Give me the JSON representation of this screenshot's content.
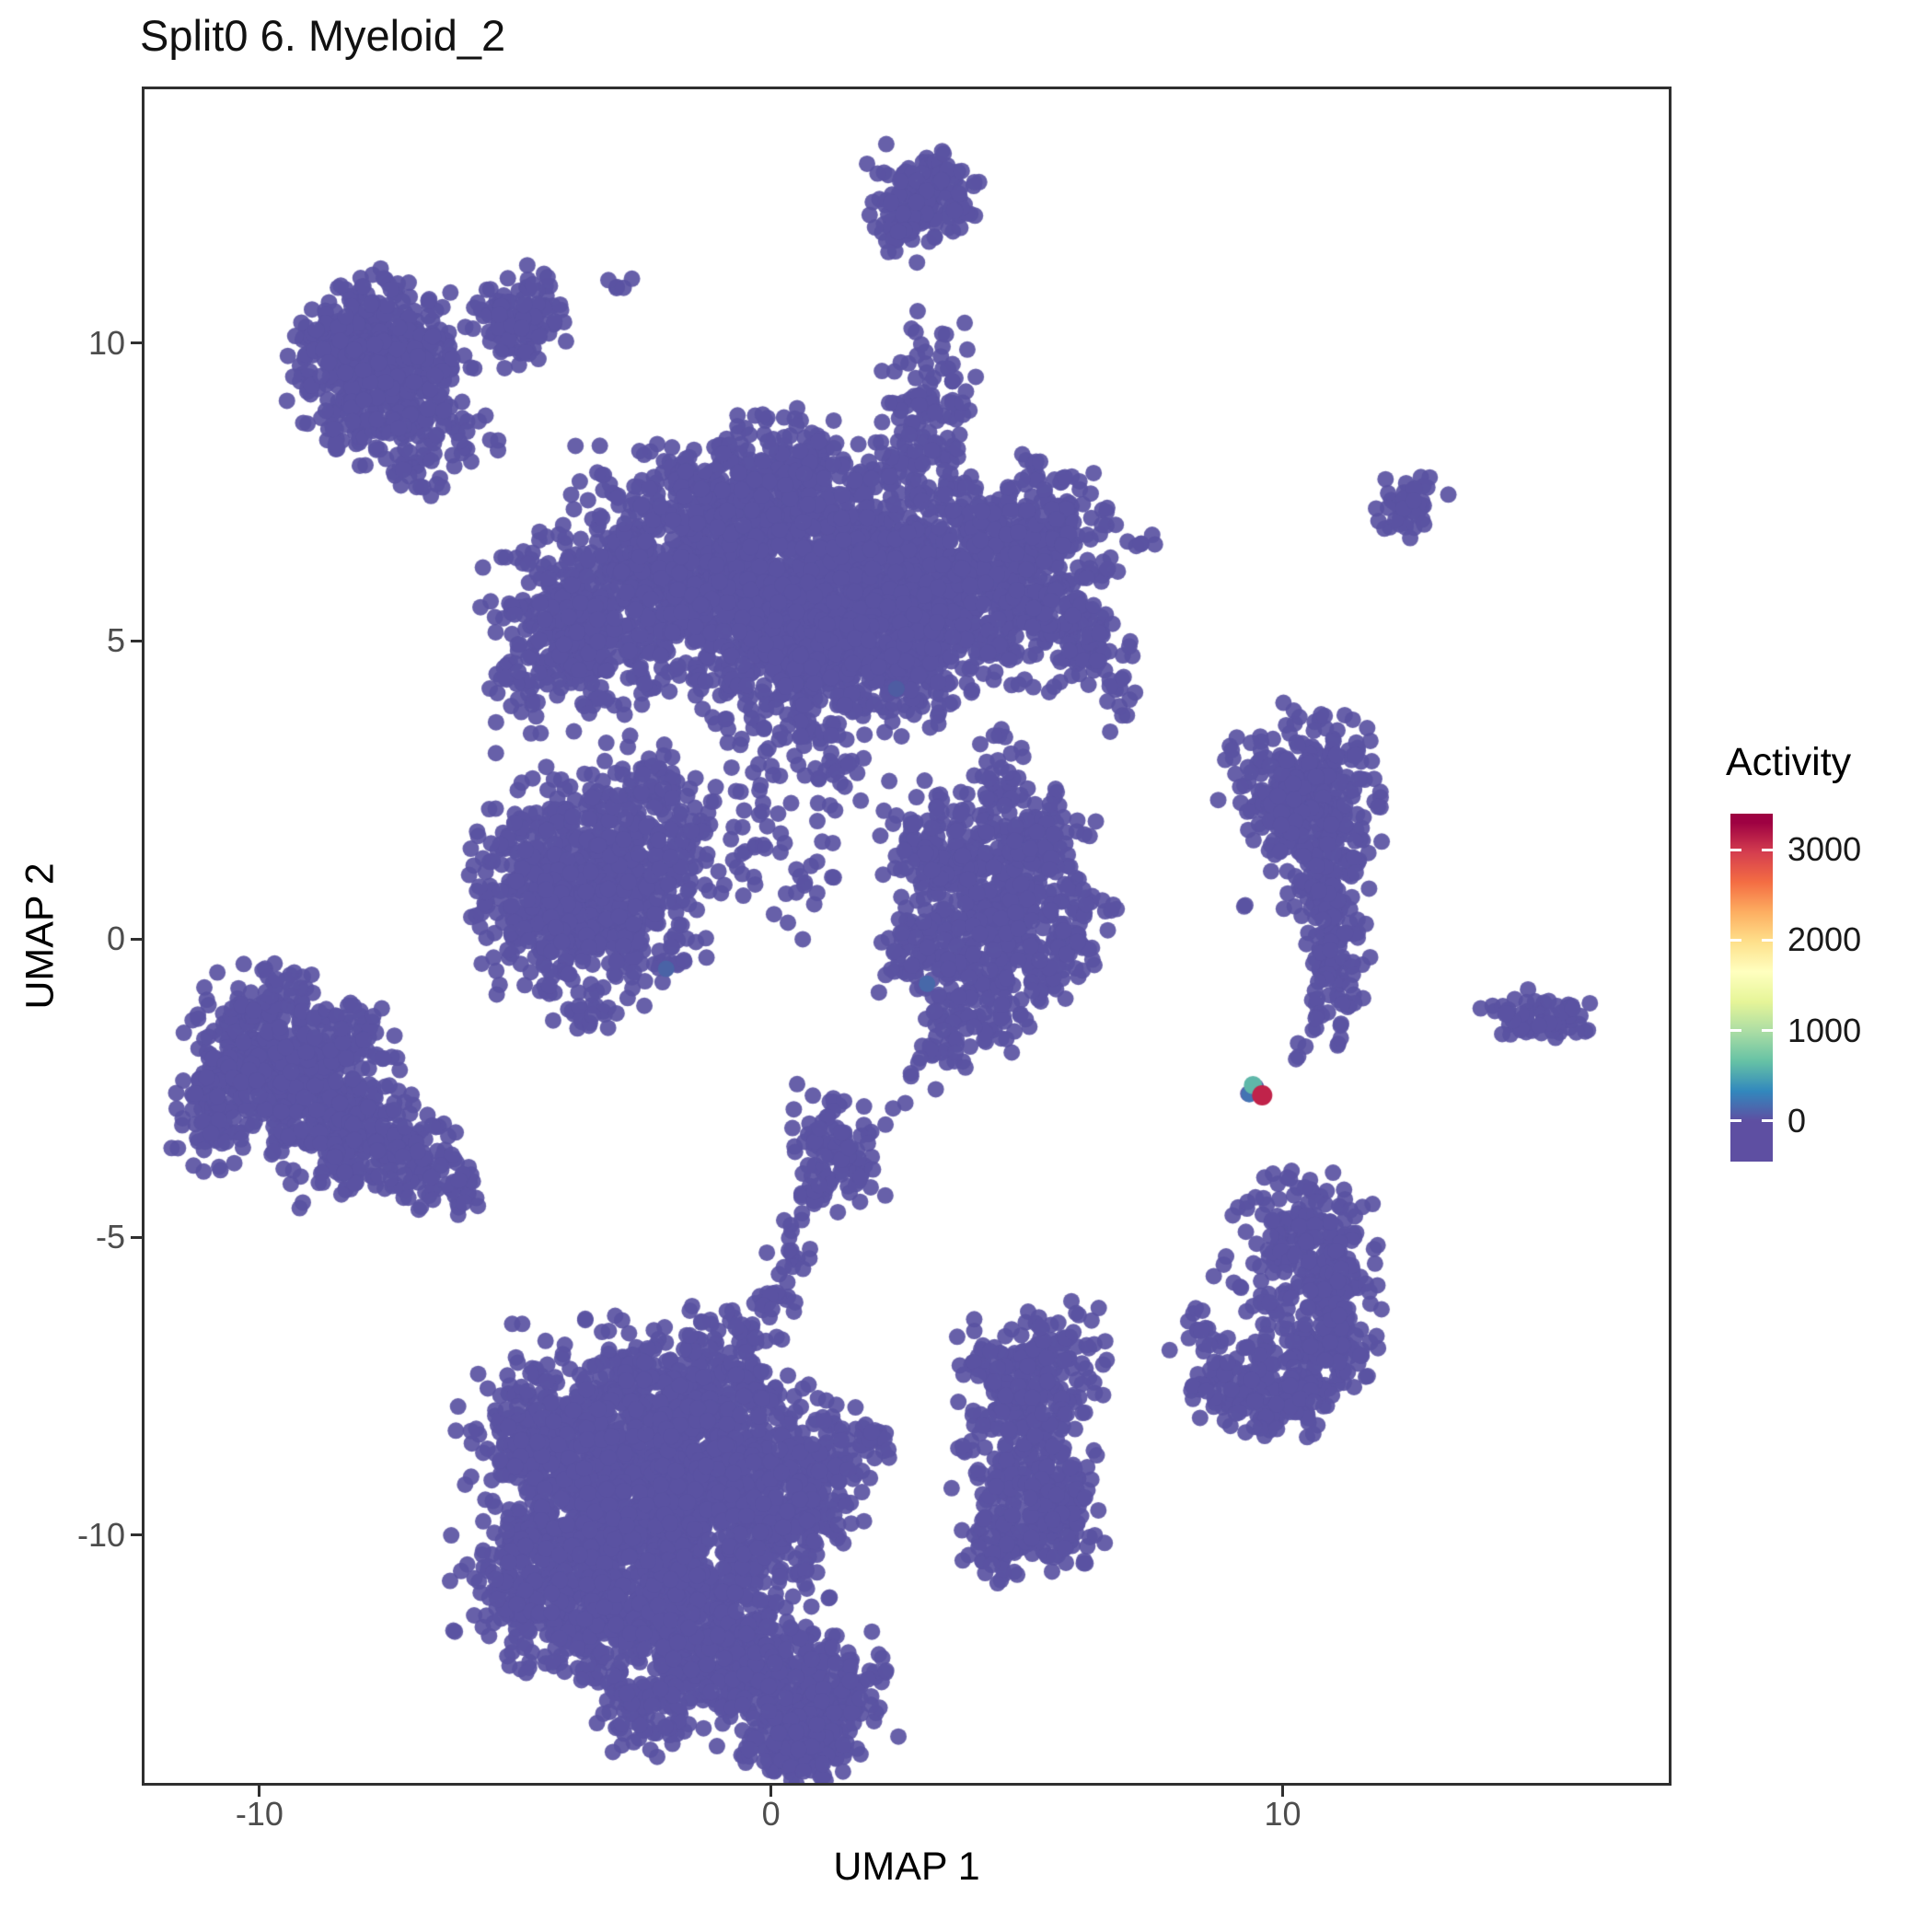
{
  "title": "Split0 6. Myeloid_2",
  "axes": {
    "x": {
      "label": "UMAP 1",
      "ticks": [
        -10,
        0,
        10
      ],
      "range": [
        -12.3,
        17.6
      ]
    },
    "y": {
      "label": "UMAP 2",
      "ticks": [
        -10,
        -5,
        0,
        5,
        10
      ],
      "range": [
        -14.2,
        14.3
      ]
    }
  },
  "legend": {
    "title": "Activity",
    "ticks": [
      0,
      1000,
      2000,
      3000
    ],
    "bar_value_range": [
      -450,
      3400
    ],
    "color_value_range": [
      0,
      3300
    ],
    "colors_low_to_high": [
      "#5E4FA2",
      "#3288BD",
      "#66C2A5",
      "#ABDDA4",
      "#E6F598",
      "#FFFFBF",
      "#FEE08B",
      "#FDAE61",
      "#F46D43",
      "#D53E4F",
      "#9E0142"
    ]
  },
  "style": {
    "point_color": "#5A52A2",
    "point_radius": 9,
    "point_alpha": 0.92,
    "background": "#FFFFFF",
    "panel_border_color": "#2F2F2F",
    "tick_label_color": "#4D4D4D",
    "axis_text_color": "#000000"
  },
  "chart_data": {
    "type": "scatter",
    "title": "Split0 6. Myeloid_2",
    "xlabel": "UMAP 1",
    "ylabel": "UMAP 2",
    "xlim": [
      -12.3,
      17.6
    ],
    "ylim": [
      -14.2,
      14.3
    ],
    "grid": false,
    "legend_position": "right",
    "color_scale": {
      "name": "Activity",
      "type": "continuous-spectral",
      "domain": [
        0,
        3300
      ]
    },
    "cluster_format": [
      "center_x",
      "center_y",
      "sd_x",
      "sd_y",
      "n_points"
    ],
    "clusters": [
      [
        3.0,
        12.45,
        0.5,
        0.38,
        130
      ],
      [
        2.5,
        11.9,
        0.22,
        0.28,
        30
      ],
      [
        -7.6,
        9.5,
        0.8,
        0.75,
        480
      ],
      [
        -8.3,
        10.2,
        0.4,
        0.35,
        80
      ],
      [
        -4.9,
        10.45,
        0.45,
        0.4,
        110
      ],
      [
        -6.3,
        8.4,
        0.5,
        0.45,
        40
      ],
      [
        -3.0,
        11.0,
        0.15,
        0.12,
        5
      ],
      [
        -7.0,
        7.6,
        0.2,
        0.2,
        8
      ],
      [
        -3.7,
        5.2,
        0.9,
        0.75,
        330
      ],
      [
        -2.0,
        6.2,
        1.0,
        0.9,
        430
      ],
      [
        -0.3,
        6.1,
        1.1,
        1.0,
        560
      ],
      [
        1.5,
        6.2,
        1.1,
        1.0,
        560
      ],
      [
        3.3,
        6.1,
        1.0,
        0.9,
        430
      ],
      [
        4.9,
        6.3,
        0.8,
        0.75,
        280
      ],
      [
        0.6,
        4.7,
        0.9,
        0.6,
        230
      ],
      [
        2.6,
        4.8,
        0.8,
        0.6,
        200
      ],
      [
        3.1,
        8.9,
        0.45,
        0.7,
        110
      ],
      [
        0.3,
        7.9,
        0.6,
        0.45,
        110
      ],
      [
        -1.3,
        7.5,
        0.55,
        0.4,
        90
      ],
      [
        5.9,
        5.2,
        0.5,
        0.5,
        90
      ],
      [
        5.7,
        7.0,
        0.45,
        0.4,
        60
      ],
      [
        6.7,
        4.4,
        0.3,
        0.5,
        25
      ],
      [
        0.2,
        3.5,
        0.7,
        0.35,
        45
      ],
      [
        -4.9,
        4.3,
        0.3,
        0.3,
        15
      ],
      [
        7.2,
        6.7,
        0.15,
        0.2,
        6
      ],
      [
        -4.0,
        1.3,
        0.8,
        0.8,
        300
      ],
      [
        -3.0,
        0.4,
        0.8,
        0.7,
        260
      ],
      [
        -4.7,
        0.2,
        0.5,
        0.5,
        100
      ],
      [
        -2.5,
        2.3,
        0.5,
        0.5,
        90
      ],
      [
        -1.8,
        1.4,
        0.45,
        0.5,
        60
      ],
      [
        -5.4,
        1.3,
        0.3,
        0.4,
        22
      ],
      [
        -3.6,
        -1.2,
        0.3,
        0.25,
        18
      ],
      [
        -0.6,
        2.0,
        0.5,
        0.7,
        35
      ],
      [
        0.6,
        1.0,
        0.4,
        0.5,
        22
      ],
      [
        1.4,
        2.6,
        0.35,
        0.4,
        18
      ],
      [
        4.3,
        0.6,
        0.8,
        0.7,
        280
      ],
      [
        3.3,
        1.6,
        0.5,
        0.5,
        110
      ],
      [
        5.3,
        1.5,
        0.45,
        0.45,
        90
      ],
      [
        4.0,
        -0.9,
        0.55,
        0.5,
        130
      ],
      [
        5.6,
        -0.4,
        0.4,
        0.4,
        60
      ],
      [
        2.7,
        -0.3,
        0.35,
        0.45,
        45
      ],
      [
        4.6,
        2.7,
        0.3,
        0.45,
        40
      ],
      [
        6.3,
        0.4,
        0.25,
        0.3,
        14
      ],
      [
        3.2,
        -2.0,
        0.3,
        0.35,
        16
      ],
      [
        0.9,
        -2.8,
        0.4,
        0.3,
        8
      ],
      [
        10.5,
        2.7,
        0.75,
        0.55,
        170
      ],
      [
        10.8,
        1.5,
        0.5,
        0.7,
        150
      ],
      [
        10.9,
        0.2,
        0.35,
        0.6,
        80
      ],
      [
        11.0,
        -0.9,
        0.25,
        0.45,
        40
      ],
      [
        9.9,
        2.3,
        0.4,
        0.4,
        50
      ],
      [
        9.3,
        0.6,
        0.06,
        0.06,
        2
      ],
      [
        10.4,
        -1.9,
        0.1,
        0.12,
        4
      ],
      [
        12.5,
        7.2,
        0.32,
        0.28,
        45
      ],
      [
        15.2,
        -1.35,
        0.6,
        0.22,
        60
      ],
      [
        14.3,
        -1.2,
        0.1,
        0.08,
        3
      ],
      [
        -10.2,
        -1.9,
        0.7,
        0.6,
        220
      ],
      [
        -9.0,
        -2.7,
        0.8,
        0.7,
        280
      ],
      [
        -7.8,
        -3.3,
        0.6,
        0.5,
        150
      ],
      [
        -10.9,
        -2.9,
        0.4,
        0.45,
        70
      ],
      [
        -6.8,
        -3.9,
        0.4,
        0.35,
        55
      ],
      [
        -6.0,
        -4.15,
        0.3,
        0.22,
        25
      ],
      [
        -9.5,
        -0.95,
        0.45,
        0.3,
        30
      ],
      [
        -8.3,
        -1.6,
        0.45,
        0.35,
        40
      ],
      [
        -9.2,
        -4.5,
        0.07,
        0.07,
        2
      ],
      [
        -11.3,
        -1.4,
        0.12,
        0.1,
        4
      ],
      [
        1.35,
        -3.6,
        0.45,
        0.45,
        90
      ],
      [
        0.85,
        -4.35,
        0.16,
        0.25,
        12
      ],
      [
        0.45,
        -5.05,
        0.16,
        0.3,
        14
      ],
      [
        0.05,
        -5.85,
        0.18,
        0.35,
        16
      ],
      [
        -0.4,
        -6.6,
        0.2,
        0.35,
        18
      ],
      [
        -1.3,
        -7.5,
        0.7,
        0.6,
        210
      ],
      [
        -2.8,
        -7.8,
        0.8,
        0.7,
        270
      ],
      [
        -4.3,
        -8.6,
        0.8,
        0.7,
        270
      ],
      [
        -3.3,
        -9.8,
        0.9,
        0.8,
        340
      ],
      [
        -1.8,
        -9.3,
        0.8,
        0.7,
        270
      ],
      [
        -0.4,
        -8.6,
        0.7,
        0.6,
        190
      ],
      [
        -4.9,
        -10.8,
        0.6,
        0.55,
        140
      ],
      [
        -3.6,
        -11.5,
        0.7,
        0.6,
        190
      ],
      [
        -2.2,
        -11.1,
        0.7,
        0.6,
        190
      ],
      [
        -0.9,
        -10.7,
        0.7,
        0.6,
        190
      ],
      [
        0.3,
        -9.9,
        0.6,
        0.6,
        150
      ],
      [
        0.9,
        -8.8,
        0.5,
        0.5,
        100
      ],
      [
        1.9,
        -8.5,
        0.3,
        0.25,
        25
      ],
      [
        -1.5,
        -12.4,
        0.6,
        0.5,
        140
      ],
      [
        -0.2,
        -12.1,
        0.6,
        0.5,
        140
      ],
      [
        0.9,
        -12.7,
        0.7,
        0.55,
        200
      ],
      [
        0.5,
        -13.5,
        0.55,
        0.35,
        130
      ],
      [
        -2.6,
        -13.0,
        0.4,
        0.35,
        55
      ],
      [
        -4.9,
        -6.4,
        0.07,
        0.07,
        2
      ],
      [
        -5.8,
        -8.2,
        0.06,
        0.06,
        1
      ],
      [
        5.3,
        -7.3,
        0.6,
        0.5,
        140
      ],
      [
        4.9,
        -8.4,
        0.65,
        0.6,
        170
      ],
      [
        5.4,
        -9.6,
        0.55,
        0.5,
        130
      ],
      [
        4.4,
        -10.2,
        0.35,
        0.3,
        50
      ],
      [
        3.9,
        -7.0,
        0.2,
        0.22,
        12
      ],
      [
        5.9,
        -6.35,
        0.15,
        0.15,
        6
      ],
      [
        10.4,
        -4.9,
        0.6,
        0.45,
        120
      ],
      [
        11.0,
        -5.9,
        0.45,
        0.55,
        110
      ],
      [
        10.8,
        -7.0,
        0.5,
        0.5,
        110
      ],
      [
        9.9,
        -7.6,
        0.55,
        0.4,
        100
      ],
      [
        8.9,
        -7.5,
        0.4,
        0.35,
        60
      ],
      [
        9.7,
        -6.1,
        0.45,
        0.5,
        35
      ],
      [
        8.3,
        -6.5,
        0.2,
        0.3,
        12
      ],
      [
        7.8,
        -6.9,
        0.06,
        0.06,
        1
      ],
      [
        9.4,
        -4.35,
        0.08,
        0.08,
        2
      ],
      [
        9.5,
        -2.55,
        0.08,
        0.07,
        4
      ]
    ],
    "highlight_points": [
      {
        "x": 2.45,
        "y": 4.2,
        "r": 9,
        "value": 120,
        "color": "#4E5CA2"
      },
      {
        "x": -2.05,
        "y": -0.5,
        "r": 9,
        "value": 150,
        "color": "#4A63A6"
      },
      {
        "x": 3.05,
        "y": -0.75,
        "r": 9,
        "value": 200,
        "color": "#4768A9"
      },
      {
        "x": 9.35,
        "y": -2.6,
        "r": 9,
        "value": 400,
        "color": "#4473B3"
      },
      {
        "x": 9.42,
        "y": -2.45,
        "r": 10,
        "value": 1000,
        "color": "#5FB7A9"
      },
      {
        "x": 9.6,
        "y": -2.62,
        "r": 11,
        "value": 3100,
        "color": "#C0234A"
      }
    ],
    "note": "UMAP embedding of ~12,000 cells colored by Activity; nearly all cells have Activity near 0 (purple). One cell near (9.6,-2.6) shows Activity around 3100 (dark red) and a neighboring cell around 1000 (teal)."
  }
}
